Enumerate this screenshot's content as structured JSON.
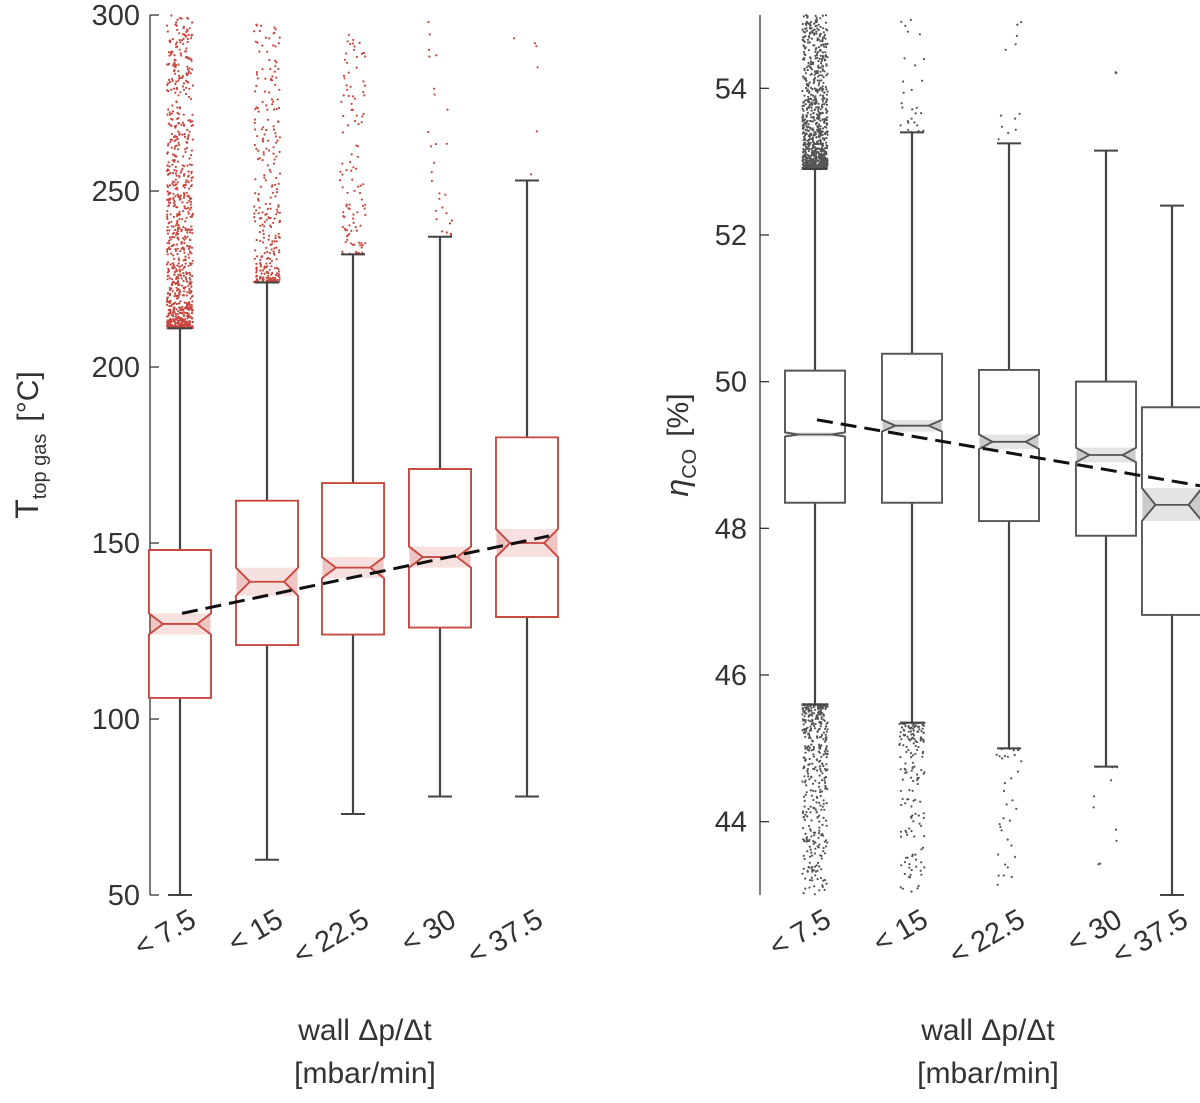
{
  "chart_data": [
    {
      "type": "boxplot",
      "id": "left",
      "color": "#c8473f",
      "outlier_color": "#c8473f",
      "ylabel": {
        "main": "T",
        "sub": "top gas",
        "unit": "[°C]"
      },
      "xlabel": [
        "wall  Δp/Δt",
        "[mbar/min]"
      ],
      "ylim": [
        50,
        300
      ],
      "yticks": [
        50,
        100,
        150,
        200,
        250,
        300
      ],
      "categories": [
        "< 7.5",
        "< 15",
        "< 22.5",
        "< 30",
        "< 37.5"
      ],
      "boxes": [
        {
          "q1": 106,
          "median": 127,
          "q3": 148,
          "whisker_low": 50,
          "whisker_high": 211,
          "notch_low": 124,
          "notch_high": 130,
          "outliers_high": [
            211,
            300,
            900
          ],
          "outliers_low": [
            0,
            0,
            0
          ]
        },
        {
          "q1": 121,
          "median": 139,
          "q3": 162,
          "whisker_low": 60,
          "whisker_high": 224,
          "notch_low": 135,
          "notch_high": 143,
          "outliers_high": [
            224,
            299,
            300
          ],
          "outliers_low": [
            0,
            0,
            0
          ]
        },
        {
          "q1": 124,
          "median": 143,
          "q3": 167,
          "whisker_low": 73,
          "whisker_high": 232,
          "notch_low": 140,
          "notch_high": 146,
          "outliers_high": [
            232,
            295,
            120
          ],
          "outliers_low": [
            0,
            0,
            0
          ]
        },
        {
          "q1": 126,
          "median": 146,
          "q3": 171,
          "whisker_low": 78,
          "whisker_high": 237,
          "notch_low": 143,
          "notch_high": 149,
          "outliers_high": [
            237,
            299,
            30
          ],
          "outliers_low": [
            0,
            0,
            0
          ]
        },
        {
          "q1": 129,
          "median": 150,
          "q3": 180,
          "whisker_low": 78,
          "whisker_high": 253,
          "notch_low": 146,
          "notch_high": 154,
          "outliers_high": [
            253,
            296,
            8
          ],
          "outliers_low": [
            0,
            0,
            0
          ]
        }
      ],
      "trend": {
        "y_start": 130,
        "y_end": 152
      }
    },
    {
      "type": "boxplot",
      "id": "right",
      "color": "#555555",
      "outlier_color": "#555555",
      "ylabel": {
        "main": "η",
        "sub": "CO",
        "unit": "[%]"
      },
      "xlabel": [
        "wall  Δp/Δt",
        "[mbar/min]"
      ],
      "ylim": [
        43,
        55
      ],
      "yticks": [
        44,
        46,
        48,
        50,
        52,
        54
      ],
      "categories": [
        "< 7.5",
        "< 15",
        "< 22.5",
        "< 30",
        "< 37.5"
      ],
      "boxes": [
        {
          "q1": 48.35,
          "median": 49.28,
          "q3": 50.15,
          "whisker_low": 45.6,
          "whisker_high": 52.9,
          "notch_low": 49.25,
          "notch_high": 49.31,
          "outliers_high": [
            52.9,
            55,
            900
          ],
          "outliers_low": [
            43,
            45.6,
            450
          ]
        },
        {
          "q1": 48.35,
          "median": 49.4,
          "q3": 50.38,
          "whisker_low": 45.35,
          "whisker_high": 53.4,
          "notch_low": 49.32,
          "notch_high": 49.48,
          "outliers_high": [
            53.4,
            55,
            30
          ],
          "outliers_low": [
            43,
            45.35,
            180
          ]
        },
        {
          "q1": 48.1,
          "median": 49.18,
          "q3": 50.16,
          "whisker_low": 45.0,
          "whisker_high": 53.25,
          "notch_low": 49.08,
          "notch_high": 49.28,
          "outliers_high": [
            53.25,
            55,
            12
          ],
          "outliers_low": [
            43.1,
            45.0,
            40
          ]
        },
        {
          "q1": 47.9,
          "median": 49.0,
          "q3": 50.0,
          "whisker_low": 44.75,
          "whisker_high": 53.15,
          "notch_low": 48.9,
          "notch_high": 49.1,
          "outliers_high": [
            54.2,
            54.3,
            2
          ],
          "outliers_low": [
            43.2,
            44.75,
            10
          ]
        },
        {
          "q1": 46.82,
          "median": 48.32,
          "q3": 49.65,
          "whisker_low": 43.0,
          "whisker_high": 52.4,
          "notch_low": 48.1,
          "notch_high": 48.55,
          "outliers_high": [
            0,
            0,
            0
          ],
          "outliers_low": [
            0,
            0,
            0
          ]
        }
      ],
      "trend": {
        "y_start": 49.48,
        "y_end": 48.58
      }
    }
  ]
}
